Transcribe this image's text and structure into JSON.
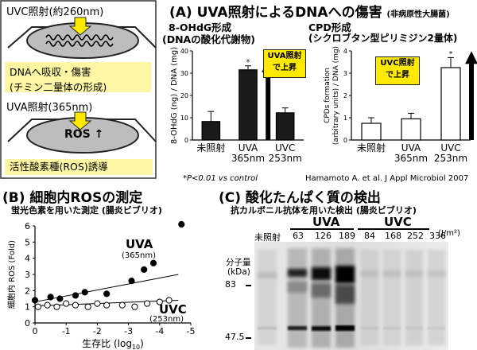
{
  "scheme": {
    "uvc_label": "UVC照射(約260nm)",
    "dna_text": "DNAへ吸収・傷害",
    "dna_text2": "(チミン二量体の形成)",
    "uva_label": "UVA照射(365nm)",
    "ros_label": "ROS ↑",
    "ros_text": "活性酸素種(ROS)誘導"
  },
  "panelA": {
    "title": "(A) UVA照射によるDNAへの傷害",
    "title_note": "(非病原性大腸菌)",
    "left_title": "8-OHdG形成",
    "left_title2": "(DNAの酸化代謝物)",
    "right_title": "CPD形成",
    "right_title2": "(シクロブタン型ピリミジン2量体)",
    "left_callout1": "UVA照射",
    "left_callout2": "で上昇",
    "right_callout1": "UVC照射",
    "right_callout2": "で上昇",
    "footnote": "*P<0.01 vs control",
    "citation": "Hamamoto A. et al. J Appl Microbiol 2007"
  },
  "panelB": {
    "title": "(B) 細胞内ROSの測定",
    "subtitle": "蛍光色素を用いた測定 (腸炎ビブリオ)",
    "uva_label": "UVA",
    "uva_sub": "(365nm)",
    "uvc_label": "UVC",
    "uvc_sub": "(253nm)"
  },
  "panelC": {
    "title": "(C) 酸化たんぱく質の検出",
    "subtitle": "抗カルボニル抗体を用いた検出 (腸炎ビブリオ)",
    "uva_header": "UVA",
    "uvc_header": "UVC",
    "lane_labels": [
      "未照射",
      "63",
      "126",
      "189",
      "84",
      "168",
      "252",
      "336"
    ],
    "dose_unit": "(J/m²)",
    "mw_label1": "分子量",
    "mw_label2": "(kDa)",
    "markers": [
      "83",
      "47.5"
    ]
  },
  "chart_data": [
    {
      "type": "bar",
      "categories": [
        "未照射",
        "UVA 365nm",
        "UVC 253nm"
      ],
      "values": [
        8.3,
        31.5,
        12.2
      ],
      "errors": [
        4.5,
        1.8,
        2.2
      ],
      "significance": [
        "",
        "*",
        ""
      ],
      "colors": [
        "#1a1a1a",
        "#1a1a1a",
        "#1a1a1a"
      ],
      "ylabel": "8-OHdG (ng) / DNA (mg)",
      "ylim": [
        0,
        40
      ],
      "yticks": [
        0,
        10,
        20,
        30,
        40
      ]
    },
    {
      "type": "bar",
      "categories": [
        "未照射",
        "UVA 365nm",
        "UVC 253nm"
      ],
      "values": [
        0.75,
        0.95,
        3.25
      ],
      "errors": [
        0.25,
        0.25,
        0.45
      ],
      "significance": [
        "",
        "",
        "*"
      ],
      "colors": [
        "#ffffff",
        "#ffffff",
        "#ffffff"
      ],
      "ylabel": "CPDs formation (arbitrary units) / DNA (mg)",
      "ylim": [
        0,
        4
      ],
      "yticks": [
        0,
        1,
        2,
        3,
        4
      ]
    },
    {
      "type": "scatter",
      "xlabel": "生存比 (log10)",
      "ylabel": "細胞内 ROS (Fold)",
      "xlim": [
        0,
        -5
      ],
      "ylim": [
        0,
        6
      ],
      "xticks": [
        0,
        -1,
        -2,
        -3,
        -4,
        -5
      ],
      "yticks": [
        0,
        1,
        2,
        3,
        4,
        5,
        6
      ],
      "series": [
        {
          "name": "UVA",
          "marker": "filled",
          "x": [
            0,
            -0.5,
            -0.8,
            -1.3,
            -1.6,
            -2.3,
            -3.1,
            -3.5,
            -3.8,
            -4.7
          ],
          "y": [
            1.4,
            1.6,
            1.5,
            1.7,
            1.9,
            1.8,
            2.6,
            3.3,
            3.7,
            6.1
          ],
          "fit": [
            [
              0,
              1.3
            ],
            [
              -4.6,
              3.0
            ]
          ]
        },
        {
          "name": "UVC",
          "marker": "open",
          "x": [
            -0.1,
            -0.4,
            -0.7,
            -1.0,
            -1.3,
            -1.7,
            -2.0,
            -2.3,
            -2.8,
            -3.2,
            -3.6,
            -4.0,
            -4.3
          ],
          "y": [
            1.0,
            1.1,
            1.0,
            1.2,
            1.1,
            1.0,
            1.2,
            1.1,
            1.1,
            1.0,
            1.2,
            1.3,
            1.4
          ],
          "fit": [
            [
              0,
              1.05
            ],
            [
              -4.6,
              1.4
            ]
          ]
        }
      ]
    }
  ]
}
